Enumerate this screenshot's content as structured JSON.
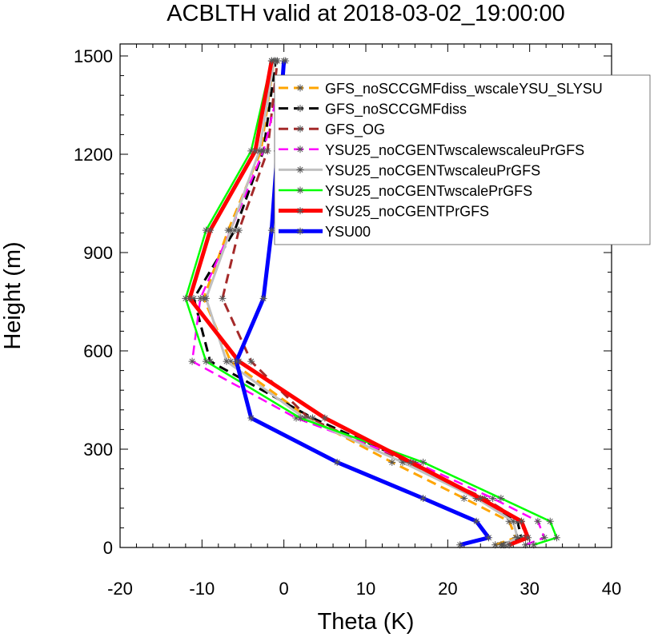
{
  "chart_data": {
    "type": "line",
    "title": "ACBLTH valid at 2018-03-02_19:00:00",
    "xlabel": "Theta (K)",
    "ylabel": "Height (m)",
    "xlim": [
      -20,
      40
    ],
    "ylim": [
      0,
      1500
    ],
    "xticks": [
      -20,
      -10,
      0,
      10,
      20,
      30,
      40
    ],
    "yticks": [
      0,
      300,
      600,
      900,
      1200,
      1500
    ],
    "xtick_labels": [
      "-20",
      "-10",
      "0",
      "10",
      "20",
      "30",
      "40"
    ],
    "ytick_labels": [
      "0",
      "300",
      "600",
      "900",
      "1200",
      "1500"
    ],
    "legend_position": "top-right",
    "series": [
      {
        "name": "GFS_noSCCGMFdiss_wscaleYSU_SLYSU",
        "color": "#ffa500",
        "dash": "dash",
        "width": 3,
        "marker": "asterisk",
        "x": [
          25.8,
          28.3,
          27.5,
          22.0,
          13.2,
          3.0,
          -6.5,
          -9.8,
          -6.8,
          -2.8,
          -1.2
        ],
        "y": [
          8,
          30,
          80,
          150,
          260,
          395,
          568,
          760,
          968,
          1210,
          1485
        ]
      },
      {
        "name": "GFS_noSCCGMFdiss",
        "color": "#000000",
        "dash": "dash",
        "width": 3,
        "marker": "asterisk",
        "x": [
          26.5,
          29.0,
          28.5,
          23.5,
          15.5,
          3.5,
          -9.0,
          -11.0,
          -6.0,
          -2.5,
          -1.0
        ],
        "y": [
          8,
          30,
          80,
          150,
          260,
          395,
          568,
          760,
          968,
          1210,
          1485
        ]
      },
      {
        "name": "GFS_OG",
        "color": "#a52a2a",
        "dash": "dash",
        "width": 3,
        "marker": "asterisk",
        "x": [
          27.0,
          29.5,
          29.0,
          24.5,
          15.0,
          3.0,
          -4.0,
          -7.5,
          -5.5,
          -2.0,
          -0.8
        ],
        "y": [
          8,
          30,
          80,
          150,
          260,
          395,
          568,
          760,
          968,
          1210,
          1485
        ]
      },
      {
        "name": "YSU25_noCGENTwscalewscaleuPrGFS",
        "color": "#ff00ff",
        "dash": "dash",
        "width": 2.5,
        "marker": "asterisk",
        "x": [
          29.5,
          31.8,
          31.0,
          25.5,
          16.0,
          1.5,
          -11.2,
          -10.2,
          -6.5,
          -2.5,
          0.2
        ],
        "y": [
          8,
          30,
          80,
          150,
          260,
          395,
          568,
          760,
          968,
          1210,
          1485
        ]
      },
      {
        "name": "YSU25_noCGENTwscaleuPrGFS",
        "color": "#c0c0c0",
        "dash": "solid",
        "width": 3,
        "marker": "asterisk",
        "x": [
          26.8,
          28.5,
          28.0,
          23.5,
          14.5,
          2.5,
          -7.0,
          -9.5,
          -6.5,
          -3.0,
          -1.2
        ],
        "y": [
          8,
          30,
          80,
          150,
          260,
          395,
          568,
          760,
          968,
          1210,
          1485
        ]
      },
      {
        "name": "YSU25_noCGENTwscalePrGFS",
        "color": "#00ff00",
        "dash": "solid",
        "width": 2.5,
        "marker": "asterisk",
        "x": [
          30.5,
          33.3,
          32.5,
          26.5,
          17.0,
          2.0,
          -9.5,
          -12.0,
          -9.5,
          -4.0,
          -1.5
        ],
        "y": [
          8,
          30,
          80,
          150,
          260,
          395,
          568,
          760,
          968,
          1210,
          1485
        ]
      },
      {
        "name": "YSU25_noCGENTPrGFS",
        "color": "#ff0000",
        "dash": "solid",
        "width": 5,
        "marker": "asterisk",
        "x": [
          27.5,
          29.8,
          29.0,
          24.0,
          15.5,
          5.0,
          -5.5,
          -11.5,
          -9.0,
          -3.5,
          -1.5
        ],
        "y": [
          8,
          30,
          80,
          150,
          260,
          395,
          568,
          760,
          968,
          1210,
          1485
        ]
      },
      {
        "name": "YSU00",
        "color": "#0000ff",
        "dash": "solid",
        "width": 5,
        "marker": "asterisk",
        "x": [
          21.5,
          25.0,
          23.5,
          17.0,
          6.5,
          -4.0,
          -5.8,
          -2.5,
          -1.5,
          -0.8,
          0.0
        ],
        "y": [
          8,
          30,
          80,
          150,
          260,
          395,
          568,
          760,
          968,
          1210,
          1485
        ]
      }
    ]
  }
}
